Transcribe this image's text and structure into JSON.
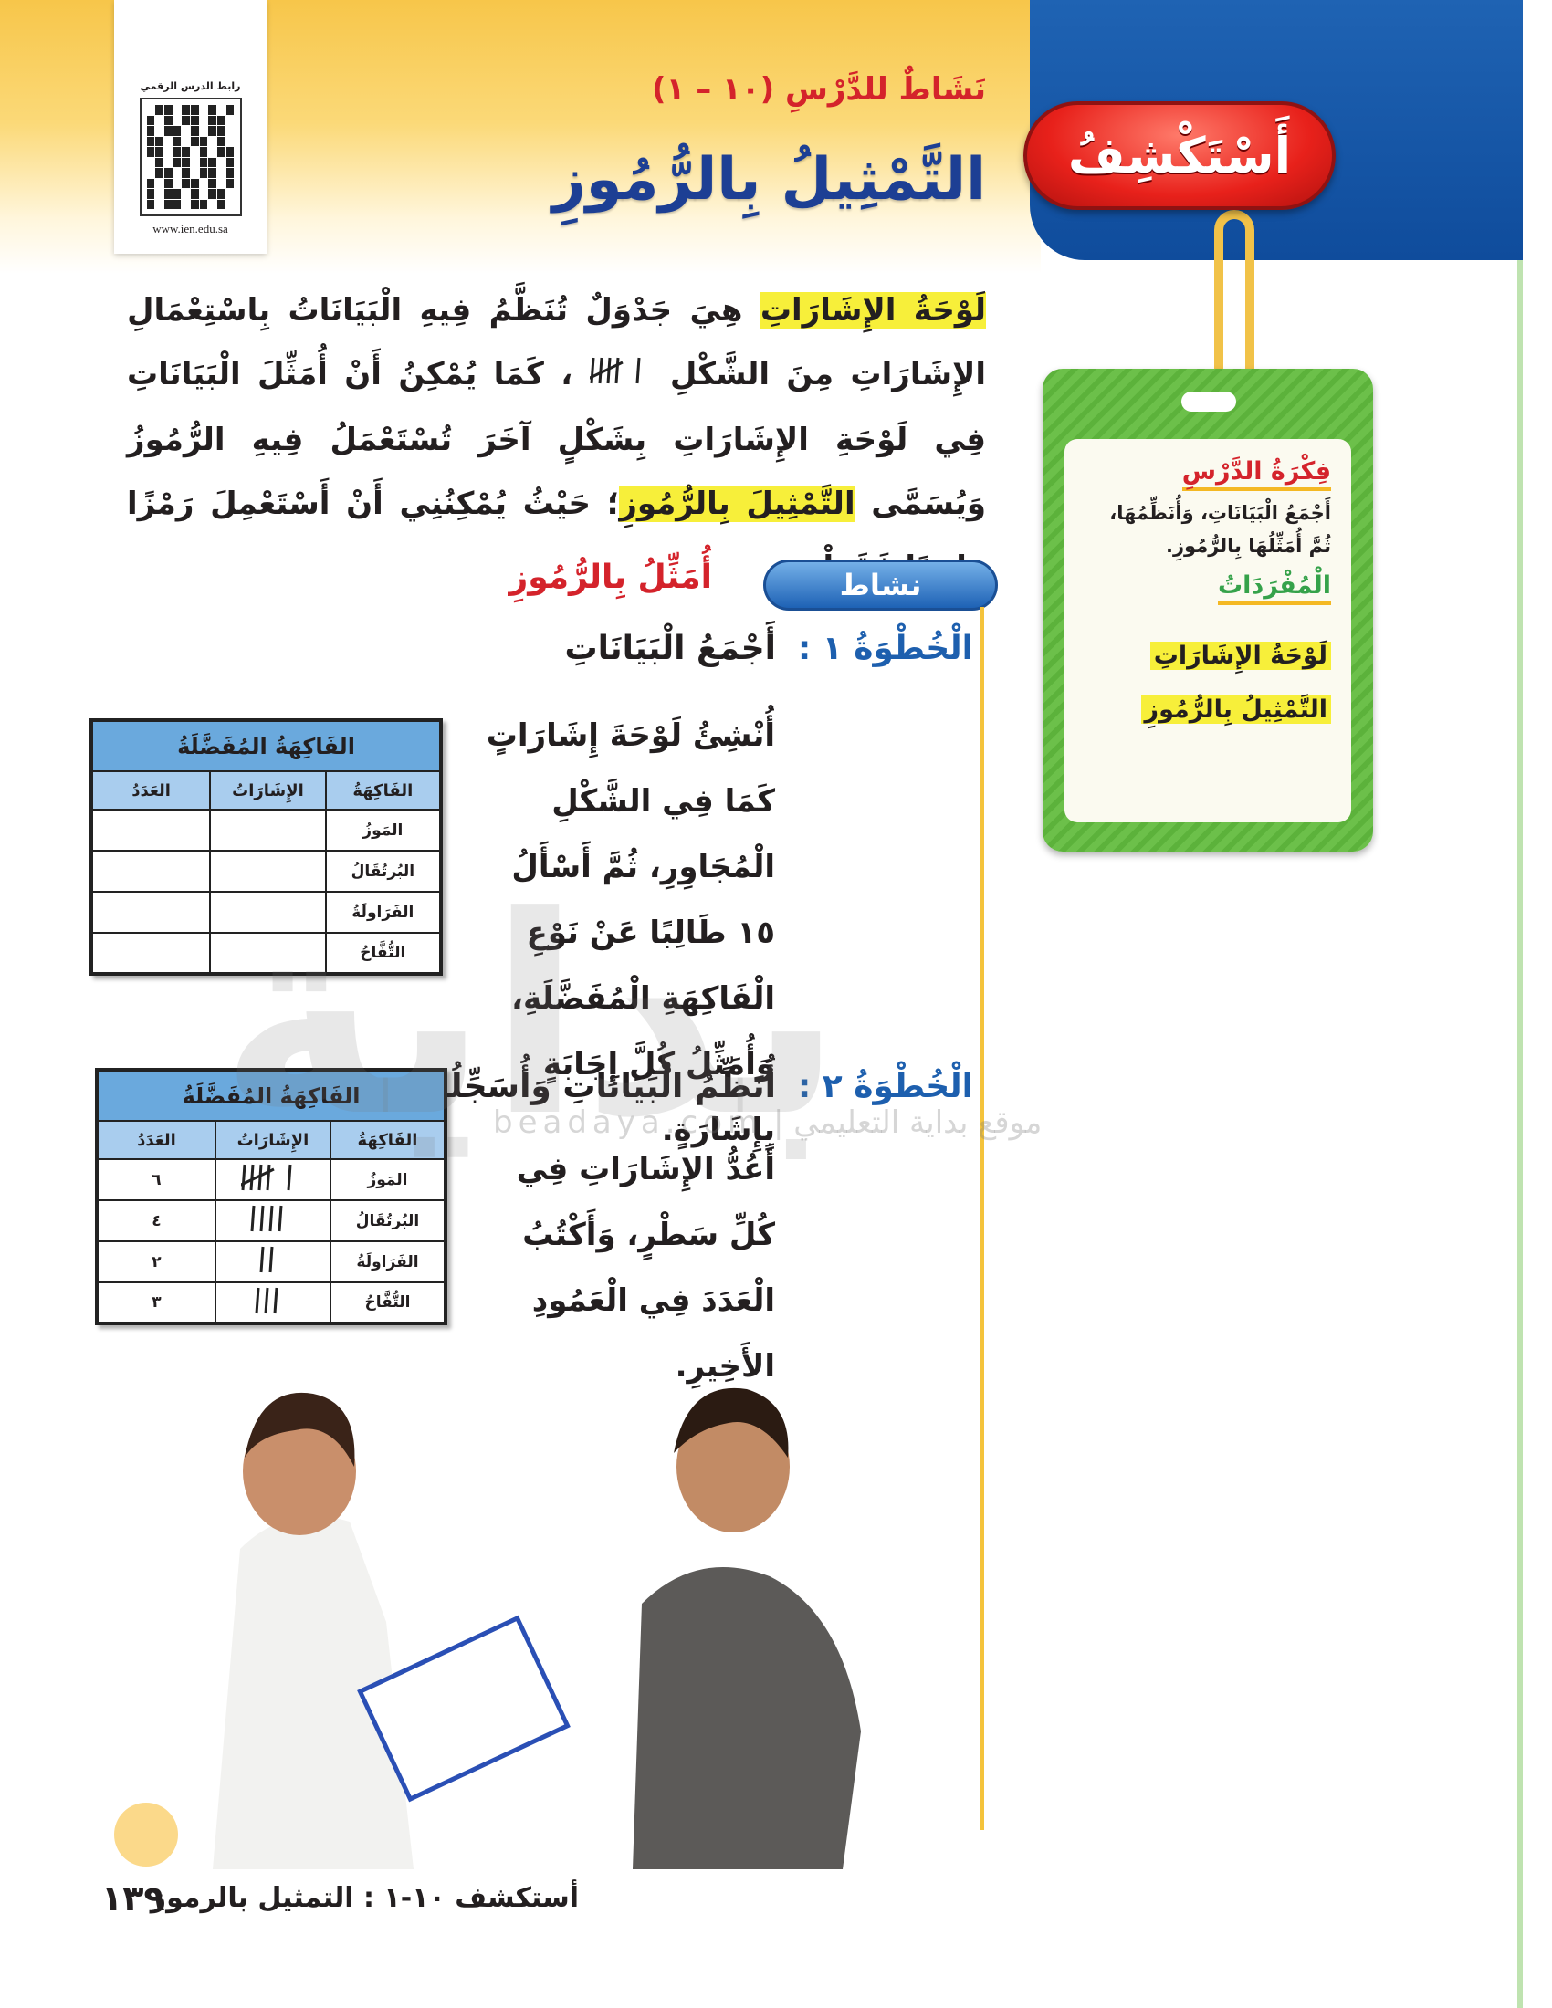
{
  "qr": {
    "caption": "رابط الدرس الرقمي",
    "url": "www.ien.edu.sa"
  },
  "header": {
    "badge": "أَسْتَكْشِفُ",
    "subtitle": "نَشَاطٌ للدَّرْسِ (١٠ – ١)",
    "title": "التَّمْثِيلُ بِالرُّمُوزِ"
  },
  "intro": {
    "term1": "لَوْحَةُ الإِشَارَاتِ",
    "part1": " هِيَ جَدْوَلٌ تُنَظَّمُ فِيهِ الْبَيَانَاتُ بِاسْتِعْمَالِ الإِشَارَاتِ مِنَ الشَّكْلِ ",
    "part2": " ، كَمَا يُمْكِنُ أَنْ أُمَثِّلَ الْبَيَانَاتِ فِي لَوْحَةِ الإِشَارَاتِ بِشَكْلٍ آخَرَ تُسْتَعْمَلُ فِيهِ الرُّمُوزُ وَيُسَمَّى ",
    "term2": "التَّمْثِيلَ بِالرُّمُوزِ",
    "part3": "؛ حَيْثُ يُمْكِنُنِي أَنْ أَسْتَعْمِلَ رَمْزًا وَاحِدًا فَقَطْ.",
    "tally_example": 6
  },
  "card": {
    "idea_title": "فِكْرَةُ الدَّرْسِ",
    "idea_text": "أَجْمَعُ الْبَيَانَاتِ، وَأُنَظِّمُهَا، ثُمَّ أُمَثِّلُهَا بِالرُّمُوزِ.",
    "vocab_title": "الْمُفْرَدَاتُ",
    "vocab": [
      "لَوْحَةُ الإِشَارَاتِ",
      "التَّمْثِيلُ بِالرُّمُوزِ"
    ]
  },
  "activity": {
    "badge": "نشاط",
    "title": "أُمَثِّلُ بِالرُّمُوزِ",
    "steps": [
      {
        "label": "الْخُطْوَةُ ١ :",
        "heading": "أَجْمَعُ الْبَيَانَاتِ",
        "text": "أُنْشِئُ لَوْحَةَ إِشَارَاتٍ كَمَا فِي الشَّكْلِ الْمُجَاوِرِ، ثُمَّ أَسْأَلُ ١٥ طَالِبًا عَنْ نَوْعِ الْفَاكِهَةِ الْمُفَضَّلَةِ، وَأُمَثِّلُ كُلَّ إِجَابَةٍ بِإِشَارَةٍ."
      },
      {
        "label": "الْخُطْوَةُ ٢ :",
        "heading": "أُنَظِّمُ الْبَيَانَاتِ وَأُسَجِّلُهَا",
        "text": "أَعُدُّ الإِشَارَاتِ فِي كُلِّ سَطْرٍ، وَأَكْتُبُ الْعَدَدَ فِي الْعَمُودِ الأَخِيرِ."
      }
    ]
  },
  "table_empty": {
    "caption": "الفَاكِهَةُ المُفَضَّلَةُ",
    "columns": [
      "الفَاكِهَةُ",
      "الإِشَارَاتُ",
      "العَدَدُ"
    ],
    "rows": [
      "المَوزُ",
      "البُرتُقَالُ",
      "الفَرَاولَةُ",
      "التُّفَّاحُ"
    ]
  },
  "table_filled": {
    "caption": "الفَاكِهَةُ المُفَضَّلَةُ",
    "columns": [
      "الفَاكِهَةُ",
      "الإِشَارَاتُ",
      "العَدَدُ"
    ],
    "rows": [
      {
        "fruit": "المَوزُ",
        "count": 6,
        "count_label": "٦"
      },
      {
        "fruit": "البُرتُقَالُ",
        "count": 4,
        "count_label": "٤"
      },
      {
        "fruit": "الفَرَاولَةُ",
        "count": 2,
        "count_label": "٢"
      },
      {
        "fruit": "التُّفَّاحُ",
        "count": 3,
        "count_label": "٣"
      }
    ]
  },
  "watermark": {
    "text": "بداية",
    "sub": "موقع بداية التعليمي | beadaya.com"
  },
  "footer": {
    "page": "١٣٩",
    "title": "أستكشف ١٠-١ : التمثيل بالرموز"
  },
  "colors": {
    "accent_red": "#d4232b",
    "title_blue": "#1d3f94",
    "highlight": "#f7ef3a",
    "card_green": "#6cc04a",
    "table_header": "#6aa9dd"
  }
}
